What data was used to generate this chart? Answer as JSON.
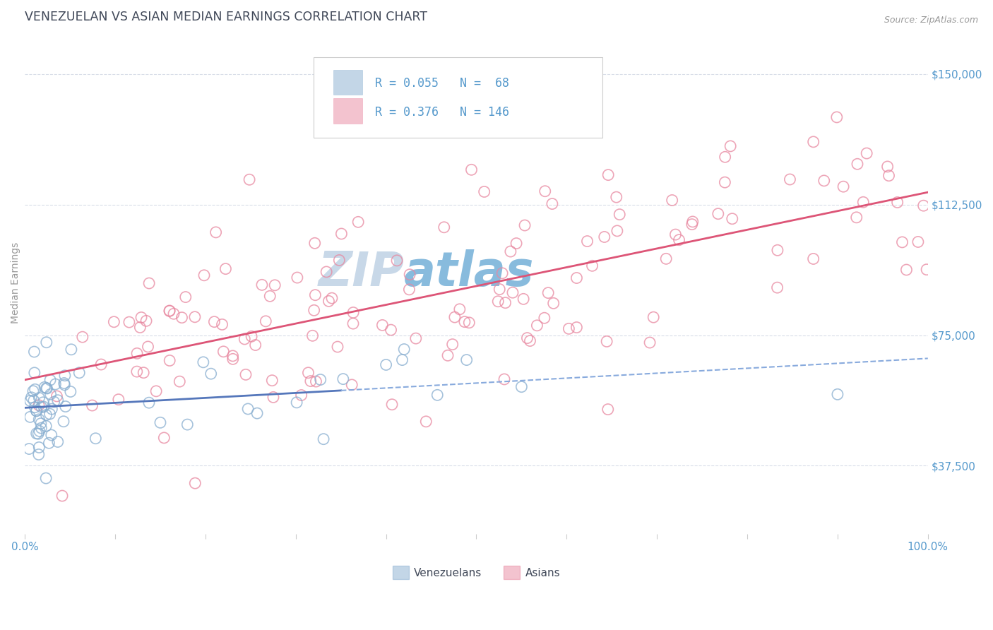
{
  "title": "VENEZUELAN VS ASIAN MEDIAN EARNINGS CORRELATION CHART",
  "source_text": "Source: ZipAtlas.com",
  "ylabel": "Median Earnings",
  "yticks": [
    37500,
    75000,
    112500,
    150000
  ],
  "ytick_labels": [
    "$37,500",
    "$75,000",
    "$112,500",
    "$150,000"
  ],
  "xrange": [
    0.0,
    1.0
  ],
  "yrange": [
    18000,
    162000
  ],
  "legend_r1": "R = 0.055",
  "legend_n1": "N =  68",
  "legend_r2": "R = 0.376",
  "legend_n2": "N = 146",
  "color_venezuelan_face": "none",
  "color_venezuelan_edge": "#88aed0",
  "color_asian_face": "none",
  "color_asian_edge": "#e888a0",
  "color_trend_venezuelan_solid": "#5577bb",
  "color_trend_venezuelan_dash": "#88aadd",
  "color_trend_asian": "#dd5577",
  "title_color": "#404858",
  "axis_label_color": "#5599cc",
  "watermark_color_zip": "#c8d8e8",
  "watermark_color_atlas": "#88bbdd",
  "background_color": "#ffffff",
  "grid_color": "#d8dde8"
}
